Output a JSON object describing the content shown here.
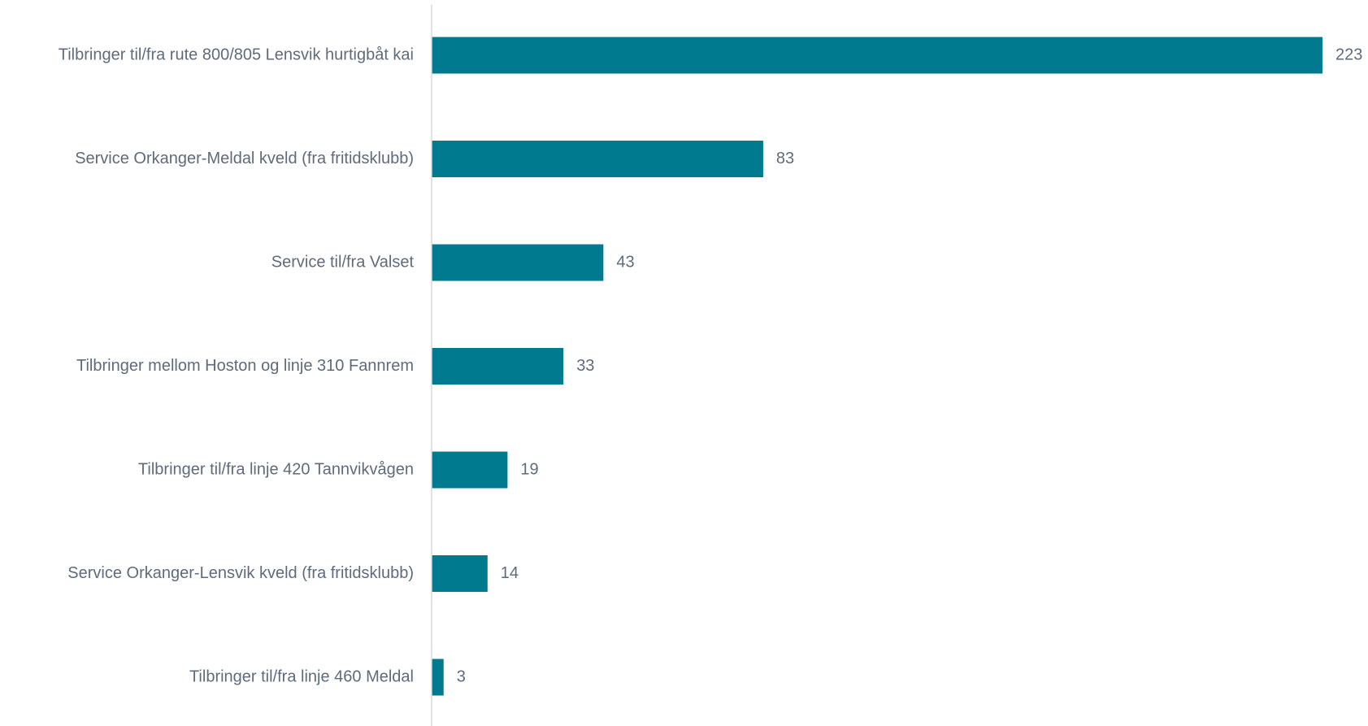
{
  "chart_data": {
    "type": "bar",
    "orientation": "horizontal",
    "categories": [
      "Tilbringer til/fra rute 800/805 Lensvik hurtigbåt kai",
      "Service Orkanger-Meldal kveld (fra fritidsklubb)",
      "Service til/fra Valset",
      "Tilbringer mellom Hoston og linje 310 Fannrem",
      "Tilbringer til/fra linje 420 Tannvikvågen",
      "Service Orkanger-Lensvik kveld (fra fritidsklubb)",
      "Tilbringer til/fra linje 460 Meldal"
    ],
    "values": [
      223,
      83,
      43,
      33,
      19,
      14,
      3
    ],
    "data_labels": [
      "223",
      "83",
      "43",
      "33",
      "19",
      "14",
      "3"
    ],
    "title": "",
    "xlabel": "",
    "ylabel": "",
    "xlim": [
      0,
      223
    ],
    "grid": false,
    "legend": "none",
    "colors": {
      "bar": "#007A8F",
      "label_text": "#5F6B7A",
      "axis": "#D9D9D9"
    }
  }
}
